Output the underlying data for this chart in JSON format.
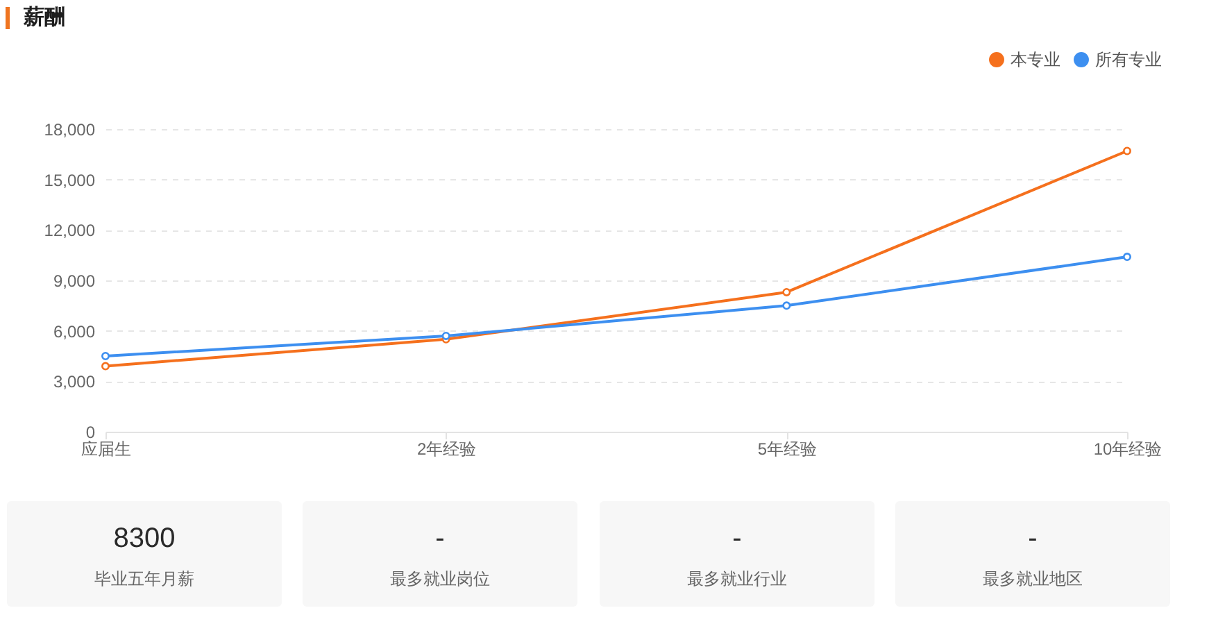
{
  "chart_data": [
    {
      "type": "line",
      "title": "薪酬",
      "categories": [
        "应届生",
        "2年经验",
        "5年经验",
        "10年经验"
      ],
      "series": [
        {
          "name": "本专业",
          "color": "#f5701d",
          "values": [
            3900,
            5500,
            8300,
            16700
          ]
        },
        {
          "name": "所有专业",
          "color": "#3d8ff0",
          "values": [
            4500,
            5700,
            7500,
            10400
          ]
        }
      ],
      "ylim": [
        0,
        18000
      ],
      "yticks": [
        0,
        {
          "value": 3000,
          "label": "3,000"
        },
        {
          "value": 6000,
          "label": "6,000"
        },
        {
          "value": 9000,
          "label": "9,000"
        },
        {
          "value": 12000,
          "label": "12,000"
        },
        {
          "value": 15000,
          "label": "15,000"
        },
        {
          "value": 18000,
          "label": "18,000"
        }
      ],
      "grid": "y",
      "legend": "top right",
      "marker": "circle"
    },
    {
      "type": "other",
      "annotations": [
        "8300",
        "毕业五年月薪"
      ]
    },
    {
      "type": "other",
      "annotations": [
        "-",
        "最多就业岗位"
      ]
    },
    {
      "type": "other",
      "annotations": [
        "-",
        "最多就业行业"
      ]
    },
    {
      "type": "other",
      "annotations": [
        "-",
        "最多就业地区"
      ]
    }
  ]
}
